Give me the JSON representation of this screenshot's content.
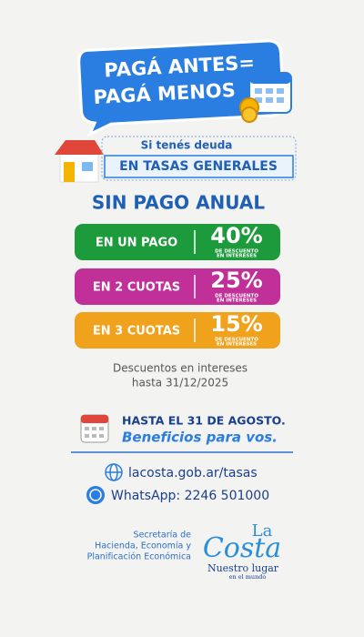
{
  "header": {
    "line1": "PAGÁ ANTES=",
    "line2": "PAGÁ MENOS"
  },
  "debt": {
    "intro": "Si tenés deuda",
    "topic": "EN TASAS GENERALES"
  },
  "heading": "SIN PAGO ANUAL",
  "options": [
    {
      "label": "EN UN PAGO",
      "discount": "40%",
      "note_line1": "DE DESCUENTO",
      "note_line2": "EN INTERESES"
    },
    {
      "label": "EN 2 CUOTAS",
      "discount": "25%",
      "note_line1": "DE DESCUENTO",
      "note_line2": "EN INTERESES"
    },
    {
      "label": "EN 3 CUOTAS",
      "discount": "15%",
      "note_line1": "DE DESCUENTO",
      "note_line2": "EN INTERESES"
    }
  ],
  "footnote": {
    "line1": "Descuentos en intereses",
    "line2": "hasta 31/12/2025"
  },
  "deadline": {
    "title": "HASTA EL 31 DE AGOSTO.",
    "subtitle": "Beneficios para vos."
  },
  "contact": {
    "web": "lacosta.gob.ar/tasas",
    "whatsapp": "WhatsApp: 2246 501000"
  },
  "office": {
    "line1": "Secretaría de",
    "line2": "Hacienda, Economía y",
    "line3": "Planificación Económica"
  },
  "logo": {
    "name_top": "La",
    "name_main": "Costa",
    "tagline": "Nuestro lugar",
    "tagline_small": "en el mundo"
  }
}
